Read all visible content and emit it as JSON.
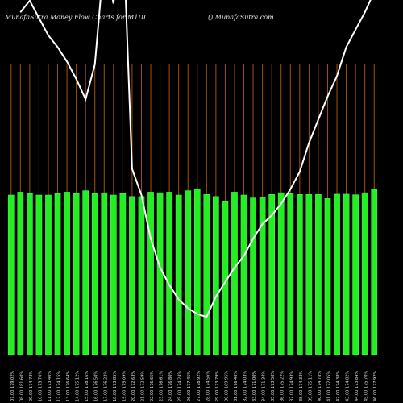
{
  "header": {
    "left_title": "MunafaSutra  Money Flow  Charts for M1DL",
    "right_title": "() MunafaSutra.com"
  },
  "colors": {
    "background": "#000000",
    "bar": "#22ee22",
    "bar_border": "#55ff55",
    "grid": "#a0520a",
    "line": "#ffffff",
    "text": "#e8e8e8"
  },
  "chart_data": {
    "type": "bar",
    "title": "",
    "xlabel": "",
    "ylabel": "",
    "ylim": [
      0,
      100
    ],
    "grid": true,
    "categories": [
      "07.00 179.02%",
      "08.00 181.60%",
      "09.00 174.73%",
      "10.00 173.70%",
      "11.00 173.40%",
      "12.00 174.15%",
      "13.00 176.64%",
      "14.00 175.12%",
      "15.00 178.16%",
      "16.00 176.50%",
      "17.00 176.22%",
      "18.00 173.85%",
      "19.00 175.09%",
      "20.00 172.63%",
      "21.00 172.59%",
      "22.00 176.65%",
      "23.00 176.61%",
      "24.00 176.80%",
      "25.00 174.24%",
      "26.00 177.45%",
      "27.00 178.92%",
      "28.00 174.56%",
      "29.00 173.79%",
      "30.00 169.95%",
      "31.00 176.40%",
      "32.00 174.03%",
      "33.00 171.00%",
      "34.00 171.34%",
      "35.00 173.58%",
      "36.00 175.22%",
      "37.00 174.93%",
      "38.00 174.33%",
      "39.00 175.11%",
      "40.00 174.78%",
      "41.00 172.05%",
      "42.00 174.38%",
      "43.00 174.82%",
      "44.00 173.84%",
      "45.00 175.70%",
      "46.00 177.92%"
    ],
    "values": [
      55,
      56,
      55.5,
      55,
      55,
      55.5,
      56,
      55.5,
      56.5,
      55.5,
      55.8,
      55,
      55.5,
      54.5,
      54.5,
      56,
      55.8,
      56,
      55,
      56.5,
      57,
      55.2,
      54.5,
      53,
      56,
      55,
      54,
      54.2,
      55.2,
      55.8,
      55.5,
      55.2,
      55.2,
      55.2,
      53.8,
      55.3,
      55.3,
      55.1,
      55.8,
      57
    ],
    "line_series": {
      "values": [
        null,
        118,
        122,
        116,
        110,
        106,
        101,
        95,
        88,
        100,
        137,
        121,
        149,
        64,
        55,
        40,
        30,
        24,
        19,
        16,
        14,
        13,
        20,
        25,
        30,
        34,
        40,
        45,
        48,
        52,
        57,
        63,
        73,
        81,
        89,
        96,
        106,
        112,
        118,
        125
      ]
    }
  }
}
